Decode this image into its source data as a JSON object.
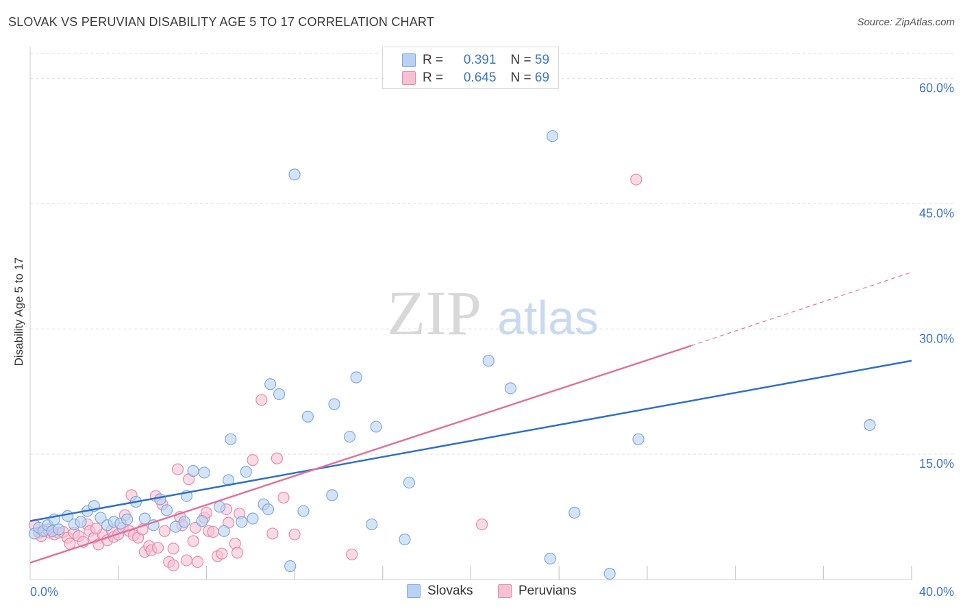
{
  "title": "SLOVAK VS PERUVIAN DISABILITY AGE 5 TO 17 CORRELATION CHART",
  "source": "Source: ZipAtlas.com",
  "watermark": {
    "zip": "ZIP",
    "atlas": "atlas"
  },
  "colors": {
    "slovak_fill": "#b8d2f3",
    "slovak_stroke": "#7fa8dc",
    "slovak_line": "#2f6fc8",
    "peruvian_fill": "#f6c2d2",
    "peruvian_stroke": "#e58aa8",
    "peruvian_line": "#e0719a",
    "tick_label": "#3d76c4",
    "grid": "#dddddd"
  },
  "legend": {
    "r_label": "R =",
    "n_label": "N =",
    "slovak": {
      "r": "0.391",
      "n": "59"
    },
    "peruvian": {
      "r": "0.645",
      "n": "69"
    }
  },
  "bottom_legend": {
    "slovak": "Slovaks",
    "peruvian": "Peruvians"
  },
  "chart_data": {
    "type": "scatter",
    "title": "SLOVAK VS PERUVIAN DISABILITY AGE 5 TO 17 CORRELATION CHART",
    "xlabel": "",
    "ylabel": "Disability Age 5 to 17",
    "xlim": [
      0,
      40
    ],
    "ylim": [
      0,
      63
    ],
    "x_tick_labels": [
      "0.0%",
      "40.0%"
    ],
    "y_ticks": [
      15,
      30,
      45,
      60
    ],
    "y_tick_labels": [
      "15.0%",
      "30.0%",
      "45.0%",
      "60.0%"
    ],
    "grid": true,
    "legend_position": "top-center",
    "series": [
      {
        "name": "Slovaks",
        "r": 0.391,
        "n": 59,
        "trend": [
          [
            0,
            7.0
          ],
          [
            40,
            26.2
          ]
        ],
        "points": [
          [
            0.2,
            5.5
          ],
          [
            0.4,
            6.2
          ],
          [
            0.6,
            5.8
          ],
          [
            0.8,
            6.5
          ],
          [
            1.0,
            5.8
          ],
          [
            1.1,
            7.2
          ],
          [
            1.3,
            6.0
          ],
          [
            1.7,
            7.6
          ],
          [
            2.0,
            6.6
          ],
          [
            2.3,
            6.9
          ],
          [
            2.6,
            8.2
          ],
          [
            2.9,
            8.8
          ],
          [
            3.2,
            7.4
          ],
          [
            3.5,
            6.5
          ],
          [
            3.8,
            6.9
          ],
          [
            4.1,
            6.7
          ],
          [
            4.4,
            7.2
          ],
          [
            4.8,
            9.3
          ],
          [
            5.2,
            7.3
          ],
          [
            5.6,
            6.5
          ],
          [
            5.9,
            9.6
          ],
          [
            6.2,
            8.3
          ],
          [
            6.6,
            6.3
          ],
          [
            7.0,
            6.9
          ],
          [
            7.1,
            10.0
          ],
          [
            7.4,
            13.0
          ],
          [
            7.8,
            7.0
          ],
          [
            7.9,
            12.8
          ],
          [
            8.6,
            8.7
          ],
          [
            8.8,
            5.8
          ],
          [
            9.0,
            11.9
          ],
          [
            9.1,
            16.8
          ],
          [
            9.6,
            6.9
          ],
          [
            9.8,
            12.9
          ],
          [
            10.1,
            7.3
          ],
          [
            10.6,
            9.0
          ],
          [
            10.8,
            8.4
          ],
          [
            10.9,
            23.4
          ],
          [
            11.3,
            22.2
          ],
          [
            11.8,
            1.6
          ],
          [
            12.0,
            48.5
          ],
          [
            12.4,
            8.2
          ],
          [
            12.6,
            19.5
          ],
          [
            13.7,
            10.1
          ],
          [
            13.8,
            21.0
          ],
          [
            14.5,
            17.1
          ],
          [
            14.8,
            24.2
          ],
          [
            15.5,
            6.6
          ],
          [
            15.7,
            18.3
          ],
          [
            17.0,
            4.8
          ],
          [
            17.2,
            11.6
          ],
          [
            20.8,
            26.2
          ],
          [
            21.8,
            22.9
          ],
          [
            23.6,
            2.5
          ],
          [
            23.7,
            53.1
          ],
          [
            24.7,
            8.0
          ],
          [
            26.3,
            0.7
          ],
          [
            27.6,
            16.8
          ],
          [
            38.1,
            18.5
          ]
        ]
      },
      {
        "name": "Peruvians",
        "r": 0.645,
        "n": 69,
        "trend": [
          [
            0,
            2.0
          ],
          [
            30,
            28.0
          ]
        ],
        "trend_extension": [
          [
            30,
            28.0
          ],
          [
            40,
            36.8
          ]
        ],
        "points": [
          [
            0.2,
            6.5
          ],
          [
            0.4,
            5.6
          ],
          [
            0.5,
            5.2
          ],
          [
            0.7,
            5.8
          ],
          [
            0.9,
            5.6
          ],
          [
            1.1,
            5.4
          ],
          [
            1.3,
            5.6
          ],
          [
            1.5,
            5.7
          ],
          [
            1.7,
            5.0
          ],
          [
            1.8,
            4.3
          ],
          [
            2.0,
            5.6
          ],
          [
            2.2,
            5.2
          ],
          [
            2.4,
            4.5
          ],
          [
            2.6,
            6.6
          ],
          [
            2.7,
            5.8
          ],
          [
            2.9,
            5.0
          ],
          [
            3.1,
            4.2
          ],
          [
            3.3,
            5.4
          ],
          [
            3.5,
            4.7
          ],
          [
            3.7,
            5.9
          ],
          [
            3.8,
            5.1
          ],
          [
            4.0,
            5.4
          ],
          [
            4.2,
            6.2
          ],
          [
            4.3,
            7.7
          ],
          [
            4.5,
            5.8
          ],
          [
            4.6,
            10.1
          ],
          [
            4.7,
            5.3
          ],
          [
            4.9,
            5.0
          ],
          [
            5.1,
            6.0
          ],
          [
            5.2,
            3.3
          ],
          [
            5.4,
            4.0
          ],
          [
            5.5,
            3.5
          ],
          [
            5.7,
            10.0
          ],
          [
            5.8,
            3.8
          ],
          [
            6.0,
            9.0
          ],
          [
            6.1,
            5.8
          ],
          [
            6.3,
            2.1
          ],
          [
            6.5,
            1.7
          ],
          [
            6.5,
            3.7
          ],
          [
            6.7,
            13.2
          ],
          [
            6.8,
            7.5
          ],
          [
            6.9,
            6.5
          ],
          [
            7.1,
            2.3
          ],
          [
            7.2,
            12.0
          ],
          [
            7.4,
            4.6
          ],
          [
            7.5,
            6.2
          ],
          [
            7.6,
            2.1
          ],
          [
            7.9,
            7.4
          ],
          [
            8.0,
            8.0
          ],
          [
            8.1,
            5.8
          ],
          [
            8.3,
            5.7
          ],
          [
            8.5,
            2.8
          ],
          [
            8.7,
            3.1
          ],
          [
            8.9,
            8.4
          ],
          [
            9.0,
            6.8
          ],
          [
            9.3,
            4.3
          ],
          [
            9.4,
            3.2
          ],
          [
            9.5,
            7.9
          ],
          [
            10.1,
            14.3
          ],
          [
            10.5,
            21.5
          ],
          [
            11.0,
            5.5
          ],
          [
            11.2,
            14.5
          ],
          [
            11.5,
            9.8
          ],
          [
            12.0,
            5.4
          ],
          [
            14.6,
            3.0
          ],
          [
            20.5,
            6.6
          ],
          [
            27.5,
            47.9
          ],
          [
            0.8,
            6.0
          ],
          [
            3.0,
            6.1
          ]
        ]
      }
    ]
  }
}
